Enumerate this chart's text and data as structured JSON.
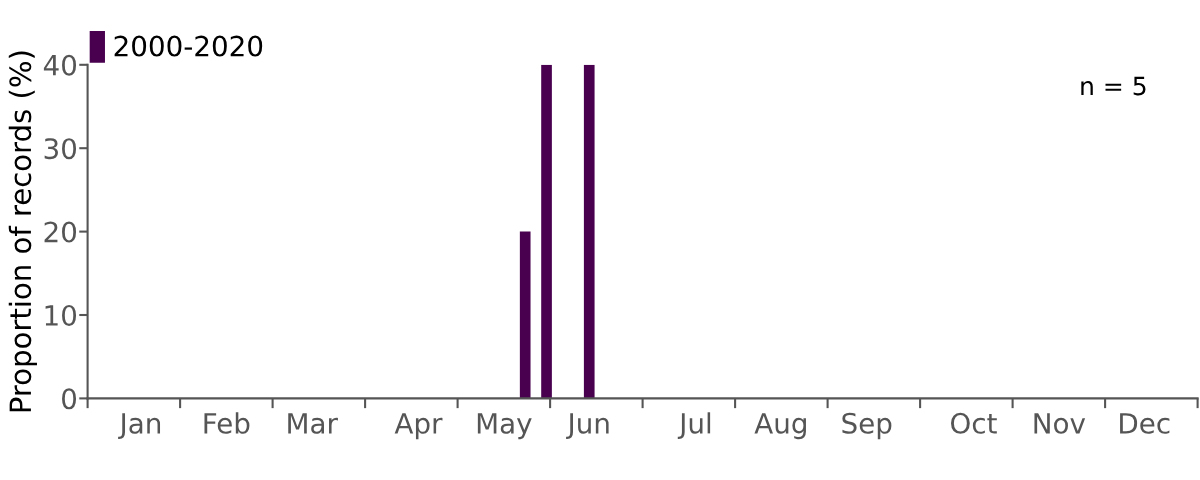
{
  "chart_data": {
    "type": "bar",
    "ylabel": "Proportion of records (%)",
    "categories": [
      null,
      null,
      "Jan",
      null,
      null,
      null,
      "Feb",
      null,
      null,
      null,
      "Mar",
      null,
      null,
      null,
      null,
      "Apr",
      null,
      null,
      null,
      "May",
      null,
      null,
      null,
      "Jun",
      null,
      null,
      null,
      null,
      "Jul",
      null,
      null,
      null,
      "Aug",
      null,
      null,
      null,
      "Sep",
      null,
      null,
      null,
      null,
      "Oct",
      null,
      null,
      null,
      "Nov",
      null,
      null,
      null,
      "Dec",
      null,
      null
    ],
    "series": [
      {
        "name": "2000-2020",
        "color": "#48004f",
        "values": [
          0,
          0,
          0,
          0,
          0,
          0,
          0,
          0,
          0,
          0,
          0,
          0,
          0,
          0,
          0,
          0,
          0,
          0,
          0,
          0,
          20,
          40,
          0,
          40,
          0,
          0,
          0,
          0,
          0,
          0,
          0,
          0,
          0,
          0,
          0,
          0,
          0,
          0,
          0,
          0,
          0,
          0,
          0,
          0,
          0,
          0,
          0,
          0,
          0,
          0,
          0,
          0
        ]
      }
    ],
    "ylim": [
      0,
      40
    ],
    "yticks": [
      0,
      10,
      20,
      30,
      40
    ],
    "grid": false,
    "legend": "top left",
    "annotations": [
      "n = 5"
    ]
  }
}
